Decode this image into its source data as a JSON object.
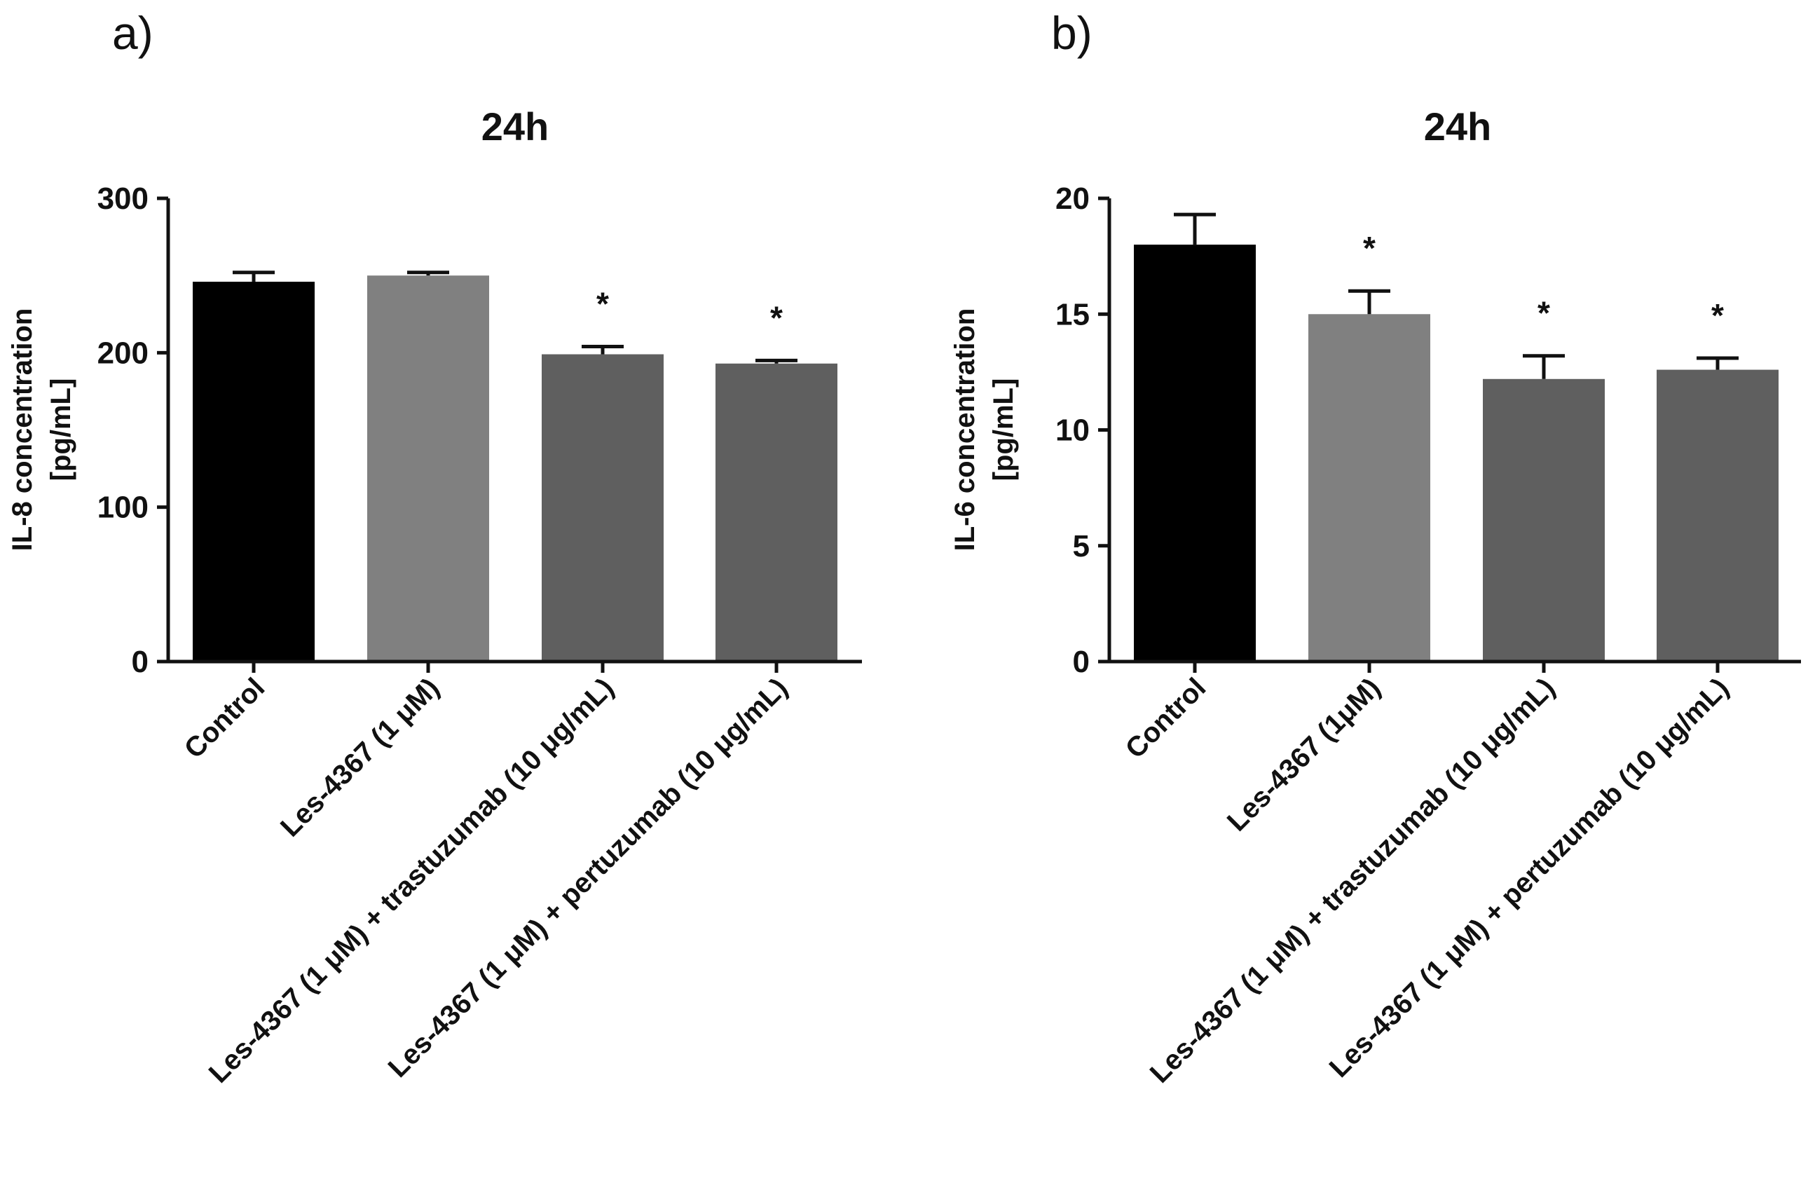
{
  "panels": [
    {
      "label": "a)",
      "chart_data": {
        "type": "bar",
        "title": "24h",
        "xlabel": "",
        "ylabel_line1": "IL-8 concentration",
        "ylabel_line2": "[pg/mL]",
        "ylim": [
          0,
          300
        ],
        "yticks": [
          0,
          100,
          200,
          300
        ],
        "categories": [
          "Control",
          "Les-4367 (1 μM)",
          "Les-4367 (1 μM) + trastuzumab (10 μg/mL)",
          "Les-4367 (1 μM) + pertuzumab (10 μg/mL)"
        ],
        "values": [
          246,
          250,
          199,
          193
        ],
        "errors": [
          6,
          2,
          5,
          2
        ],
        "significance": [
          "",
          "",
          "*",
          "*"
        ],
        "colors": [
          "#000000",
          "#808080",
          "#5f5f5f",
          "#5f5f5f"
        ]
      }
    },
    {
      "label": "b)",
      "chart_data": {
        "type": "bar",
        "title": "24h",
        "xlabel": "",
        "ylabel_line1": "IL-6 concentration",
        "ylabel_line2": "[pg/mL]",
        "ylim": [
          0,
          20
        ],
        "yticks": [
          0,
          5,
          10,
          15,
          20
        ],
        "categories": [
          "Control",
          "Les-4367 (1μM)",
          "Les-4367 (1 μM) + trastuzumab (10 μg/mL)",
          "Les-4367 (1 μM) + pertuzumab (10 μg/mL)"
        ],
        "values": [
          18.0,
          15.0,
          12.2,
          12.6
        ],
        "errors": [
          1.3,
          1.0,
          1.0,
          0.5
        ],
        "significance": [
          "",
          "*",
          "*",
          "*"
        ],
        "colors": [
          "#000000",
          "#808080",
          "#5f5f5f",
          "#5f5f5f"
        ]
      }
    }
  ]
}
